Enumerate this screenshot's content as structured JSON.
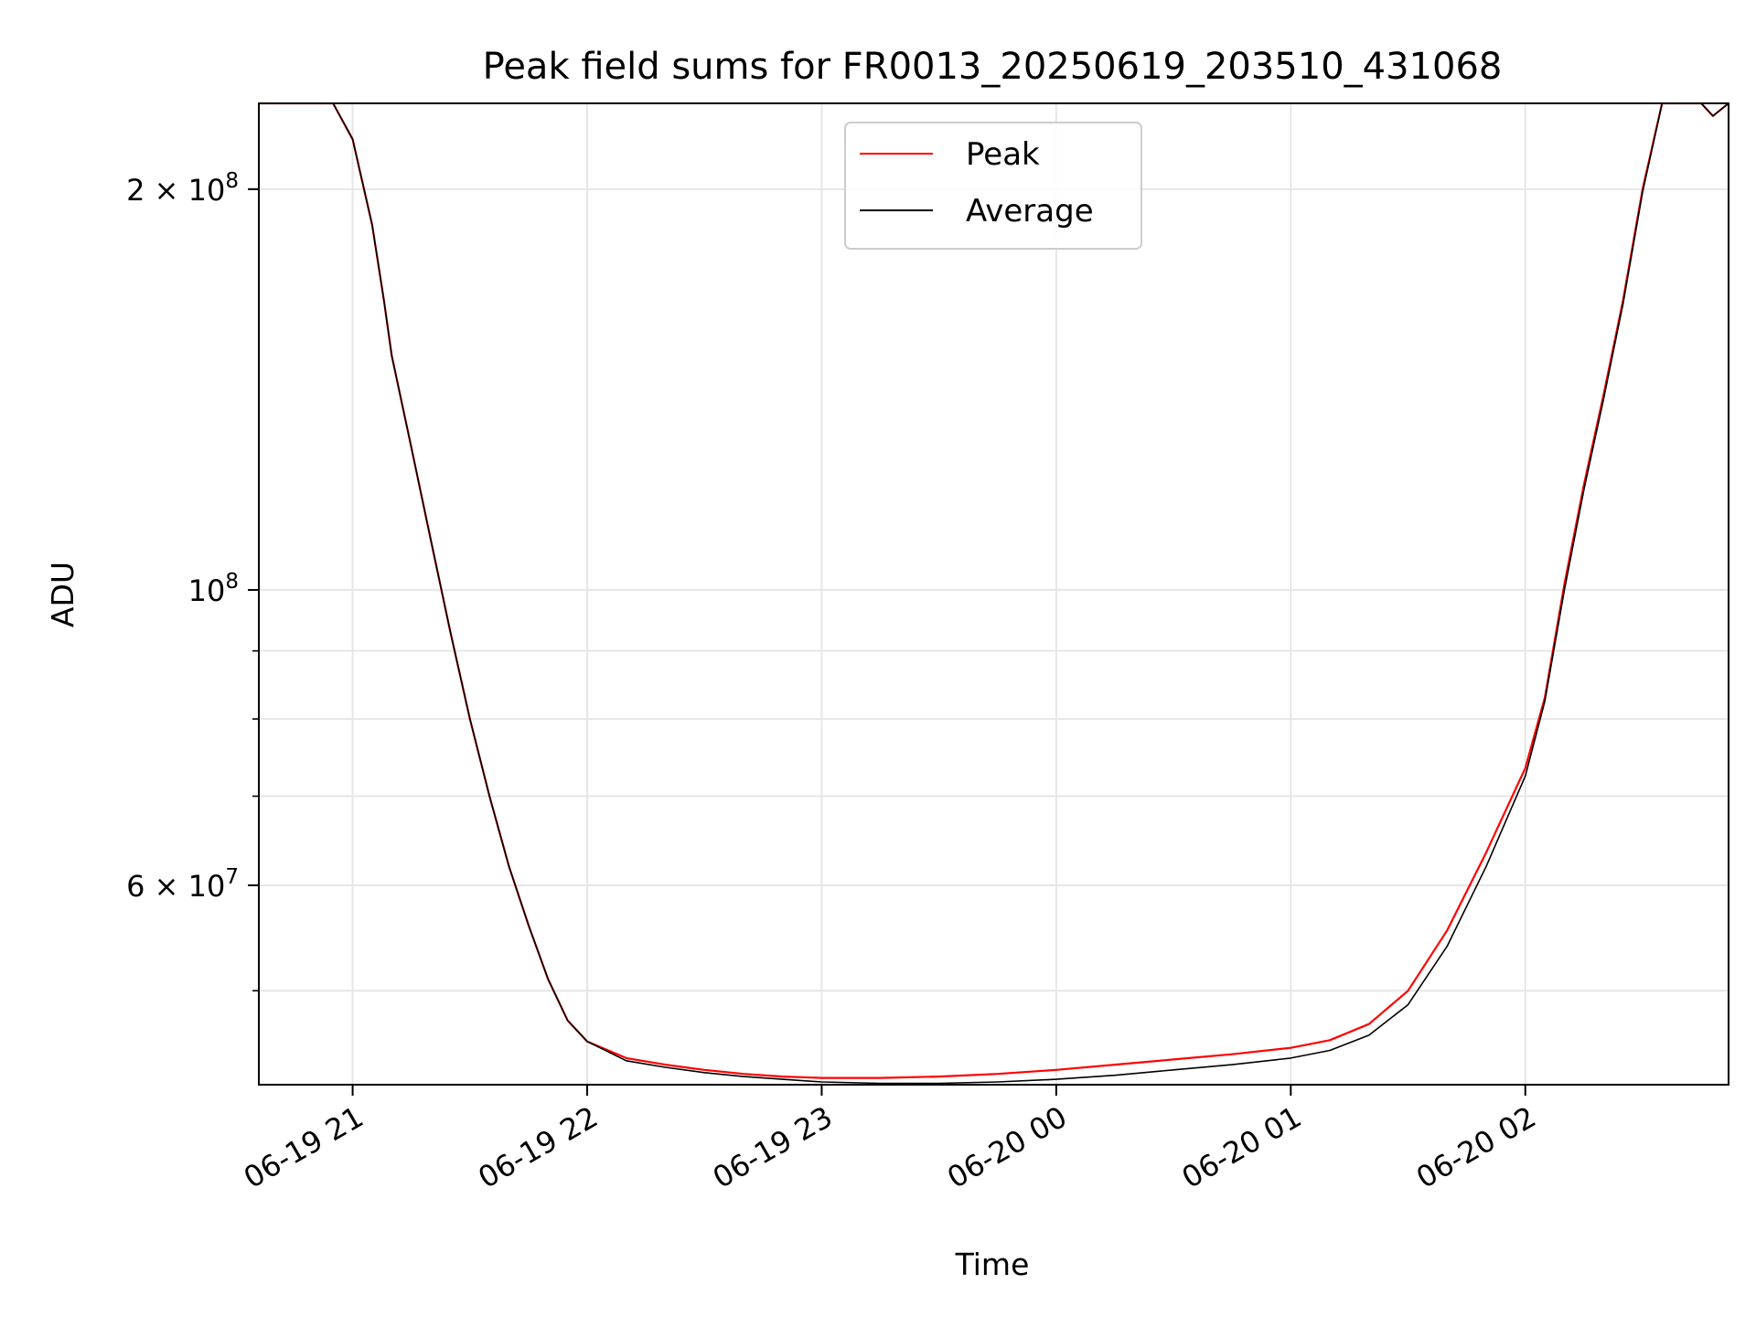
{
  "chart_data": {
    "type": "line",
    "title": "Peak field sums for FR0013_20250619_203510_431068",
    "xlabel": "Time",
    "ylabel": "ADU",
    "x_scale": "time",
    "y_scale": "log",
    "xlim": [
      "2025-06-19 20:36",
      "2025-06-20 02:52"
    ],
    "ylim": [
      42500000,
      232000000
    ],
    "x_ticks": [
      {
        "value": "2025-06-19 21:00",
        "label": "06-19 21"
      },
      {
        "value": "2025-06-19 22:00",
        "label": "06-19 22"
      },
      {
        "value": "2025-06-19 23:00",
        "label": "06-19 23"
      },
      {
        "value": "2025-06-20 00:00",
        "label": "06-20 00"
      },
      {
        "value": "2025-06-20 01:00",
        "label": "06-20 01"
      },
      {
        "value": "2025-06-20 02:00",
        "label": "06-20 02"
      }
    ],
    "y_major_ticks": [
      {
        "value": 60000000,
        "mantissa": "6",
        "exponent": "7"
      },
      {
        "value": 100000000,
        "mantissa": "",
        "exponent": "8"
      },
      {
        "value": 200000000,
        "mantissa": "2",
        "exponent": "8"
      }
    ],
    "y_minor_ticks": [
      50000000,
      70000000,
      80000000,
      90000000
    ],
    "grid": true,
    "legend_position": "top-center",
    "series": [
      {
        "name": "Peak",
        "color": "#ff0000",
        "x": [
          "2025-06-19 20:36",
          "2025-06-19 20:48",
          "2025-06-19 20:55",
          "2025-06-19 21:00",
          "2025-06-19 21:05",
          "2025-06-19 21:08",
          "2025-06-19 21:10",
          "2025-06-19 21:15",
          "2025-06-19 21:20",
          "2025-06-19 21:25",
          "2025-06-19 21:30",
          "2025-06-19 21:35",
          "2025-06-19 21:40",
          "2025-06-19 21:45",
          "2025-06-19 21:50",
          "2025-06-19 21:55",
          "2025-06-19 22:00",
          "2025-06-19 22:10",
          "2025-06-19 22:20",
          "2025-06-19 22:30",
          "2025-06-19 22:40",
          "2025-06-19 22:50",
          "2025-06-19 23:00",
          "2025-06-19 23:15",
          "2025-06-19 23:30",
          "2025-06-19 23:45",
          "2025-06-20 00:00",
          "2025-06-20 00:15",
          "2025-06-20 00:30",
          "2025-06-20 00:45",
          "2025-06-20 01:00",
          "2025-06-20 01:10",
          "2025-06-20 01:20",
          "2025-06-20 01:30",
          "2025-06-20 01:40",
          "2025-06-20 01:50",
          "2025-06-20 02:00",
          "2025-06-20 02:05",
          "2025-06-20 02:10",
          "2025-06-20 02:15",
          "2025-06-20 02:20",
          "2025-06-20 02:25",
          "2025-06-20 02:30",
          "2025-06-20 02:35",
          "2025-06-20 02:40",
          "2025-06-20 02:45",
          "2025-06-20 02:48",
          "2025-06-20 02:52"
        ],
        "y": [
          232000000,
          232000000,
          232000000,
          218000000,
          188000000,
          165000000,
          150000000,
          128000000,
          109000000,
          93000000,
          80000000,
          70000000,
          62000000,
          56000000,
          51000000,
          47500000,
          45800000,
          44500000,
          44000000,
          43600000,
          43300000,
          43100000,
          43000000,
          43000000,
          43100000,
          43300000,
          43600000,
          44000000,
          44400000,
          44800000,
          45300000,
          45900000,
          47200000,
          50000000,
          55500000,
          63500000,
          73500000,
          83000000,
          101000000,
          120000000,
          140000000,
          165000000,
          200000000,
          232000000,
          232000000,
          232000000,
          227000000,
          232000000
        ]
      },
      {
        "name": "Average",
        "color": "#000000",
        "x": [
          "2025-06-19 20:36",
          "2025-06-19 20:48",
          "2025-06-19 20:55",
          "2025-06-19 21:00",
          "2025-06-19 21:05",
          "2025-06-19 21:08",
          "2025-06-19 21:10",
          "2025-06-19 21:15",
          "2025-06-19 21:20",
          "2025-06-19 21:25",
          "2025-06-19 21:30",
          "2025-06-19 21:35",
          "2025-06-19 21:40",
          "2025-06-19 21:45",
          "2025-06-19 21:50",
          "2025-06-19 21:55",
          "2025-06-19 22:00",
          "2025-06-19 22:10",
          "2025-06-19 22:20",
          "2025-06-19 22:30",
          "2025-06-19 22:40",
          "2025-06-19 22:50",
          "2025-06-19 23:00",
          "2025-06-19 23:15",
          "2025-06-19 23:30",
          "2025-06-19 23:45",
          "2025-06-20 00:00",
          "2025-06-20 00:15",
          "2025-06-20 00:30",
          "2025-06-20 00:45",
          "2025-06-20 01:00",
          "2025-06-20 01:10",
          "2025-06-20 01:20",
          "2025-06-20 01:30",
          "2025-06-20 01:40",
          "2025-06-20 01:50",
          "2025-06-20 02:00",
          "2025-06-20 02:05",
          "2025-06-20 02:10",
          "2025-06-20 02:15",
          "2025-06-20 02:20",
          "2025-06-20 02:25",
          "2025-06-20 02:30",
          "2025-06-20 02:35",
          "2025-06-20 02:40",
          "2025-06-20 02:45",
          "2025-06-20 02:48",
          "2025-06-20 02:52"
        ],
        "y": [
          232000000,
          232000000,
          232000000,
          218000000,
          188000000,
          165000000,
          150000000,
          128000000,
          109000000,
          93000000,
          80000000,
          70000000,
          62000000,
          56000000,
          51000000,
          47500000,
          45800000,
          44300000,
          43800000,
          43400000,
          43100000,
          42900000,
          42700000,
          42600000,
          42600000,
          42700000,
          42900000,
          43200000,
          43600000,
          44000000,
          44500000,
          45100000,
          46300000,
          48800000,
          54000000,
          62000000,
          72500000,
          82500000,
          100000000,
          119000000,
          139000000,
          164000000,
          199000000,
          232000000,
          232000000,
          232000000,
          227000000,
          232000000
        ]
      }
    ]
  }
}
